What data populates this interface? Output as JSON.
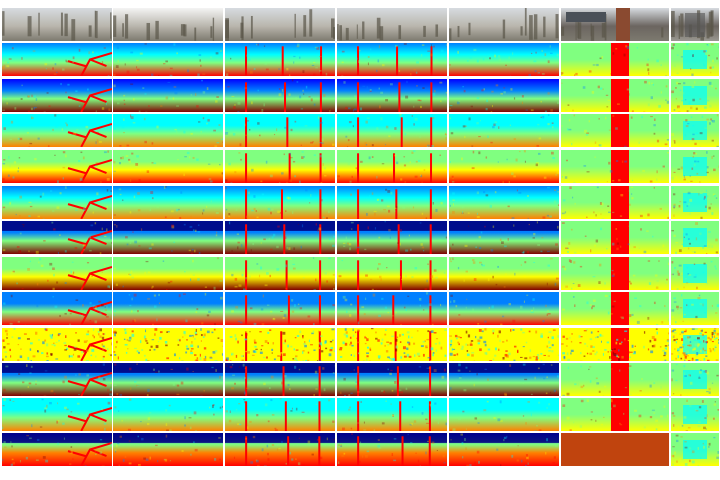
{
  "figure": {
    "rows": 13,
    "columns": 7,
    "row_types": [
      "rgb",
      "depth",
      "depth",
      "depth",
      "depth",
      "depth",
      "depth",
      "depth",
      "depth",
      "depth",
      "depth",
      "depth",
      "depth"
    ],
    "columns_content": [
      {
        "scene": "tree-branches-outdoor"
      },
      {
        "scene": "open-field-road"
      },
      {
        "scene": "residential-street-trees"
      },
      {
        "scene": "vineyard-bare-trees"
      },
      {
        "scene": "grassland-tree"
      },
      {
        "scene": "building-facade-pillar"
      },
      {
        "scene": "indoor-doorway"
      }
    ],
    "colormap": {
      "name": "jet",
      "stops": [
        "#00007f",
        "#0000ff",
        "#0080ff",
        "#00ffff",
        "#80ff80",
        "#ffff00",
        "#ff8000",
        "#ff0000",
        "#7f0000"
      ]
    },
    "rgb_palette": {
      "sky": "#d7dbe0",
      "ground": "#7d7a6f",
      "trees": "#5a5548",
      "building": "#6b6560",
      "indoor": "#9a9890"
    }
  }
}
